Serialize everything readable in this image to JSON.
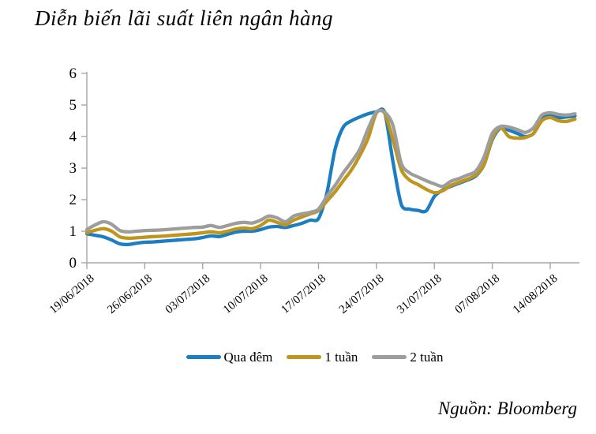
{
  "title": "Diễn biến lãi suất liên ngân hàng",
  "source": "Nguồn: Bloomberg",
  "colors": {
    "axis": "#A6A6A6",
    "text": "#000000",
    "background": "#FFFFFF"
  },
  "chart_data": {
    "type": "line",
    "title": "Diễn biến lãi suất liên ngân hàng",
    "xlabel": "",
    "ylabel": "",
    "ylim": [
      0,
      6
    ],
    "y_ticks": [
      0,
      1,
      2,
      3,
      4,
      5,
      6
    ],
    "grid": false,
    "legend_position": "bottom",
    "x_unit": "days since 19/06/2018",
    "x_ticks": [
      {
        "day": 0,
        "label": "19/06/2018"
      },
      {
        "day": 7,
        "label": "26/06/2018"
      },
      {
        "day": 14,
        "label": "03/07/2018"
      },
      {
        "day": 21,
        "label": "10/07/2018"
      },
      {
        "day": 28,
        "label": "17/07/2018"
      },
      {
        "day": 35,
        "label": "24/07/2018"
      },
      {
        "day": 42,
        "label": "31/07/2018"
      },
      {
        "day": 49,
        "label": "07/08/2018"
      },
      {
        "day": 56,
        "label": "14/08/2018"
      }
    ],
    "series": [
      {
        "id": "overnight",
        "name": "Qua đêm",
        "color": "#1B7EC2",
        "points": [
          [
            0,
            0.92
          ],
          [
            1,
            0.87
          ],
          [
            2,
            0.82
          ],
          [
            3,
            0.72
          ],
          [
            4,
            0.6
          ],
          [
            5,
            0.58
          ],
          [
            6,
            0.62
          ],
          [
            7,
            0.65
          ],
          [
            8,
            0.66
          ],
          [
            9,
            0.68
          ],
          [
            10,
            0.7
          ],
          [
            11,
            0.72
          ],
          [
            12,
            0.74
          ],
          [
            13,
            0.76
          ],
          [
            14,
            0.8
          ],
          [
            15,
            0.85
          ],
          [
            16,
            0.83
          ],
          [
            17,
            0.9
          ],
          [
            18,
            0.97
          ],
          [
            19,
            1.0
          ],
          [
            20,
            1.0
          ],
          [
            21,
            1.05
          ],
          [
            22,
            1.13
          ],
          [
            23,
            1.15
          ],
          [
            24,
            1.12
          ],
          [
            25,
            1.18
          ],
          [
            26,
            1.25
          ],
          [
            27,
            1.35
          ],
          [
            28,
            1.4
          ],
          [
            29,
            2.2
          ],
          [
            30,
            3.6
          ],
          [
            31,
            4.3
          ],
          [
            32,
            4.5
          ],
          [
            33,
            4.62
          ],
          [
            34,
            4.72
          ],
          [
            35,
            4.78
          ],
          [
            36,
            4.76
          ],
          [
            37,
            3.2
          ],
          [
            38,
            1.85
          ],
          [
            39,
            1.7
          ],
          [
            40,
            1.66
          ],
          [
            41,
            1.64
          ],
          [
            42,
            2.1
          ],
          [
            43,
            2.3
          ],
          [
            44,
            2.42
          ],
          [
            45,
            2.52
          ],
          [
            46,
            2.62
          ],
          [
            47,
            2.75
          ],
          [
            48,
            3.1
          ],
          [
            49,
            3.9
          ],
          [
            50,
            4.27
          ],
          [
            51,
            4.2
          ],
          [
            52,
            4.1
          ],
          [
            53,
            4.0
          ],
          [
            54,
            4.1
          ],
          [
            55,
            4.6
          ],
          [
            56,
            4.68
          ],
          [
            57,
            4.6
          ],
          [
            58,
            4.62
          ],
          [
            59,
            4.65
          ]
        ]
      },
      {
        "id": "one-week",
        "name": "1 tuần",
        "color": "#C0951C",
        "points": [
          [
            0,
            0.95
          ],
          [
            1,
            1.03
          ],
          [
            2,
            1.08
          ],
          [
            3,
            1.0
          ],
          [
            4,
            0.82
          ],
          [
            5,
            0.78
          ],
          [
            6,
            0.79
          ],
          [
            7,
            0.81
          ],
          [
            8,
            0.83
          ],
          [
            9,
            0.84
          ],
          [
            10,
            0.86
          ],
          [
            11,
            0.88
          ],
          [
            12,
            0.9
          ],
          [
            13,
            0.92
          ],
          [
            14,
            0.95
          ],
          [
            15,
            0.98
          ],
          [
            16,
            0.95
          ],
          [
            17,
            1.0
          ],
          [
            18,
            1.07
          ],
          [
            19,
            1.1
          ],
          [
            20,
            1.08
          ],
          [
            21,
            1.18
          ],
          [
            22,
            1.35
          ],
          [
            23,
            1.28
          ],
          [
            24,
            1.2
          ],
          [
            25,
            1.35
          ],
          [
            26,
            1.45
          ],
          [
            27,
            1.55
          ],
          [
            28,
            1.65
          ],
          [
            29,
            1.95
          ],
          [
            30,
            2.25
          ],
          [
            31,
            2.6
          ],
          [
            32,
            2.95
          ],
          [
            33,
            3.4
          ],
          [
            34,
            3.95
          ],
          [
            35,
            4.75
          ],
          [
            36,
            4.73
          ],
          [
            37,
            3.9
          ],
          [
            38,
            2.95
          ],
          [
            39,
            2.62
          ],
          [
            40,
            2.48
          ],
          [
            41,
            2.33
          ],
          [
            42,
            2.22
          ],
          [
            43,
            2.28
          ],
          [
            44,
            2.45
          ],
          [
            45,
            2.55
          ],
          [
            46,
            2.65
          ],
          [
            47,
            2.78
          ],
          [
            48,
            3.1
          ],
          [
            49,
            3.95
          ],
          [
            50,
            4.28
          ],
          [
            51,
            4.0
          ],
          [
            52,
            3.95
          ],
          [
            53,
            3.97
          ],
          [
            54,
            4.1
          ],
          [
            55,
            4.5
          ],
          [
            56,
            4.6
          ],
          [
            57,
            4.5
          ],
          [
            58,
            4.48
          ],
          [
            59,
            4.55
          ]
        ]
      },
      {
        "id": "two-weeks",
        "name": "2 tuần",
        "color": "#9D9D9D",
        "points": [
          [
            0,
            1.05
          ],
          [
            1,
            1.2
          ],
          [
            2,
            1.3
          ],
          [
            3,
            1.22
          ],
          [
            4,
            1.02
          ],
          [
            5,
            0.98
          ],
          [
            6,
            1.0
          ],
          [
            7,
            1.02
          ],
          [
            8,
            1.03
          ],
          [
            9,
            1.04
          ],
          [
            10,
            1.06
          ],
          [
            11,
            1.08
          ],
          [
            12,
            1.1
          ],
          [
            13,
            1.12
          ],
          [
            14,
            1.13
          ],
          [
            15,
            1.18
          ],
          [
            16,
            1.12
          ],
          [
            17,
            1.18
          ],
          [
            18,
            1.25
          ],
          [
            19,
            1.28
          ],
          [
            20,
            1.26
          ],
          [
            21,
            1.35
          ],
          [
            22,
            1.48
          ],
          [
            23,
            1.42
          ],
          [
            24,
            1.3
          ],
          [
            25,
            1.48
          ],
          [
            26,
            1.55
          ],
          [
            27,
            1.6
          ],
          [
            28,
            1.7
          ],
          [
            29,
            2.1
          ],
          [
            30,
            2.45
          ],
          [
            31,
            2.85
          ],
          [
            32,
            3.2
          ],
          [
            33,
            3.6
          ],
          [
            34,
            4.25
          ],
          [
            35,
            4.78
          ],
          [
            36,
            4.77
          ],
          [
            37,
            4.35
          ],
          [
            38,
            3.15
          ],
          [
            39,
            2.85
          ],
          [
            40,
            2.72
          ],
          [
            41,
            2.6
          ],
          [
            42,
            2.5
          ],
          [
            43,
            2.42
          ],
          [
            44,
            2.58
          ],
          [
            45,
            2.67
          ],
          [
            46,
            2.78
          ],
          [
            47,
            2.9
          ],
          [
            48,
            3.35
          ],
          [
            49,
            4.1
          ],
          [
            50,
            4.32
          ],
          [
            51,
            4.3
          ],
          [
            52,
            4.22
          ],
          [
            53,
            4.13
          ],
          [
            54,
            4.28
          ],
          [
            55,
            4.68
          ],
          [
            56,
            4.75
          ],
          [
            57,
            4.7
          ],
          [
            58,
            4.68
          ],
          [
            59,
            4.72
          ]
        ]
      }
    ]
  }
}
